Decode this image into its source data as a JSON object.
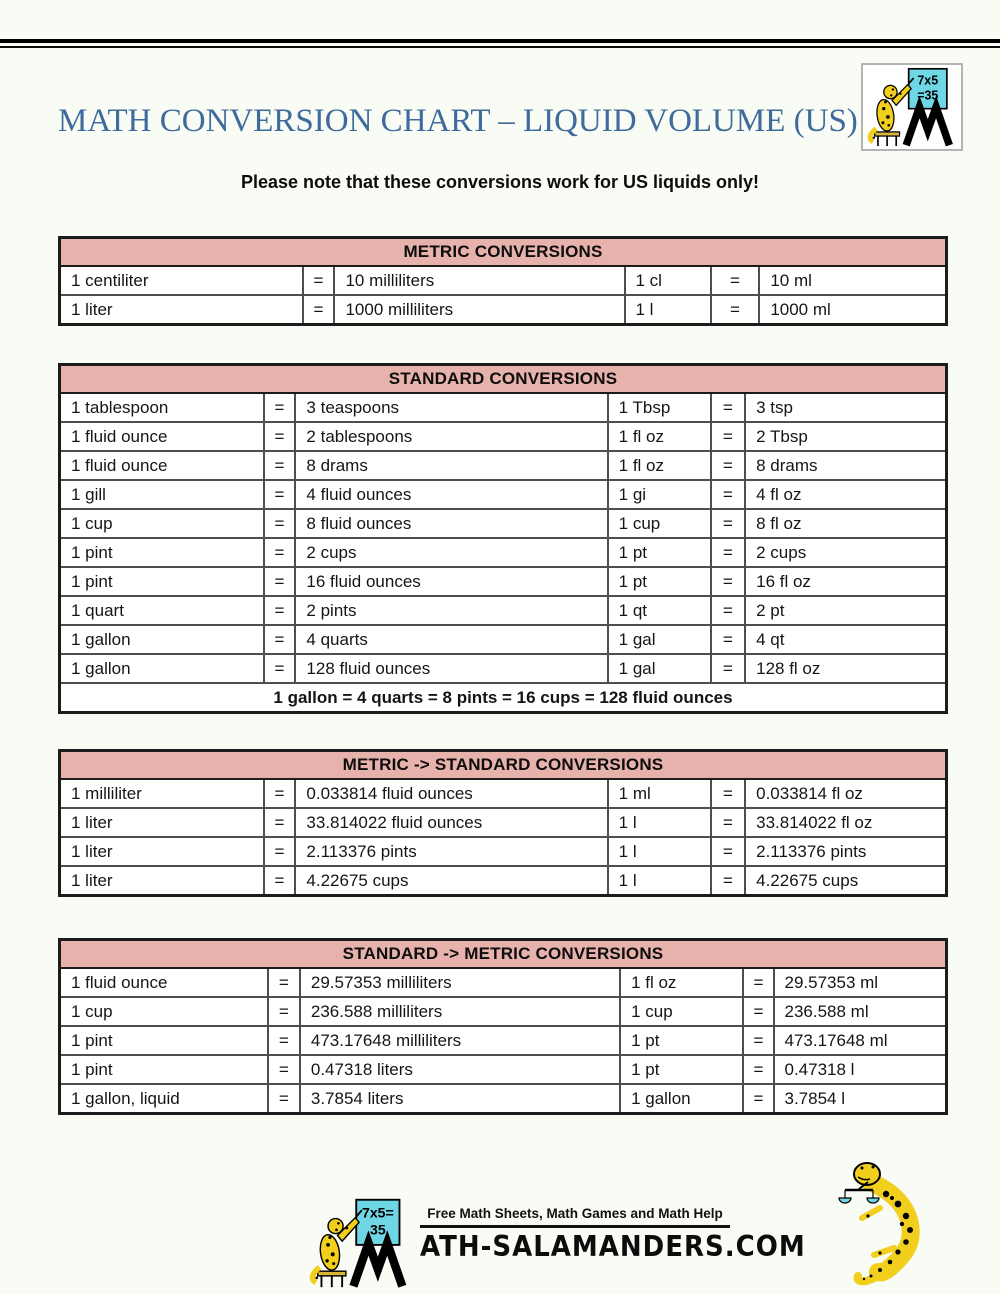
{
  "page": {
    "title": "MATH CONVERSION CHART – LIQUID VOLUME (US)",
    "note": "Please note that these conversions work for US liquids only!"
  },
  "logo_top": {
    "board_line1": "7x5",
    "board_line2": "=35"
  },
  "tables": [
    {
      "id": "metric",
      "header": "METRIC CONVERSIONS",
      "rows": [
        [
          "1 centiliter",
          "=",
          "10 milliliters",
          "1 cl",
          "=",
          "10 ml"
        ],
        [
          "1 liter",
          "=",
          "1000 milliliters",
          "1 l",
          "=",
          "1000 ml"
        ]
      ]
    },
    {
      "id": "standard",
      "header": "STANDARD CONVERSIONS",
      "rows": [
        [
          "1 tablespoon",
          "=",
          "3 teaspoons",
          "1 Tbsp",
          "=",
          "3 tsp"
        ],
        [
          "1 fluid ounce",
          "=",
          "2 tablespoons",
          "1 fl oz",
          "=",
          "2 Tbsp"
        ],
        [
          "1 fluid ounce",
          "=",
          "8 drams",
          "1 fl oz",
          "=",
          "8 drams"
        ],
        [
          "1 gill",
          "=",
          "4 fluid ounces",
          "1 gi",
          "=",
          "4 fl oz"
        ],
        [
          "1 cup",
          "=",
          "8 fluid ounces",
          "1 cup",
          "=",
          "8 fl oz"
        ],
        [
          "1 pint",
          "=",
          "2 cups",
          "1 pt",
          "=",
          "2 cups"
        ],
        [
          "1 pint",
          "=",
          "16 fluid ounces",
          "1 pt",
          "=",
          "16 fl oz"
        ],
        [
          "1 quart",
          "=",
          "2 pints",
          "1 qt",
          "=",
          "2 pt"
        ],
        [
          "1 gallon",
          "=",
          "4 quarts",
          "1 gal",
          "=",
          "4 qt"
        ],
        [
          "1 gallon",
          "=",
          "128 fluid ounces",
          "1 gal",
          "=",
          "128 fl oz"
        ]
      ],
      "footer": "1 gallon = 4 quarts = 8 pints = 16 cups = 128 fluid ounces"
    },
    {
      "id": "metric-to-standard",
      "header": "METRIC -> STANDARD CONVERSIONS",
      "rows": [
        [
          "1 milliliter",
          "=",
          "0.033814 fluid ounces",
          "1 ml",
          "=",
          "0.033814 fl oz"
        ],
        [
          "1 liter",
          "=",
          "33.814022 fluid ounces",
          "1 l",
          "=",
          "33.814022 fl oz"
        ],
        [
          "1 liter",
          "=",
          "2.113376 pints",
          "1 l",
          "=",
          "2.113376 pints"
        ],
        [
          "1 liter",
          "=",
          "4.22675 cups",
          "1 l",
          "=",
          "4.22675 cups"
        ]
      ]
    },
    {
      "id": "standard-to-metric",
      "header": "STANDARD -> METRIC CONVERSIONS",
      "rows": [
        [
          "1 fluid ounce",
          "=",
          "29.57353 milliliters",
          "1 fl oz",
          "=",
          "29.57353 ml"
        ],
        [
          "1 cup",
          "=",
          "236.588 milliliters",
          "1 cup",
          "=",
          "236.588 ml"
        ],
        [
          "1 pint",
          "=",
          "473.17648 milliliters",
          "1 pt",
          "=",
          "473.17648 ml"
        ],
        [
          "1 pint",
          "=",
          "0.47318 liters",
          "1 pt",
          "=",
          "0.47318 l"
        ],
        [
          "1 gallon, liquid",
          "=",
          "3.7854 liters",
          "1 gallon",
          "=",
          "3.7854 l"
        ]
      ]
    }
  ],
  "footer": {
    "tagline": "Free Math Sheets, Math Games and Math Help",
    "brand": "ATH-SALAMANDERS.COM",
    "board_line1": "7x5=",
    "board_line2": "35"
  },
  "icons": {
    "top_logo": "salamander-teacher-icon",
    "footer_left": "salamander-teacher-icon",
    "footer_right": "scales-salamander-icon"
  },
  "colors": {
    "header_bg": "#e7b1ac",
    "title_blue": "#3e6b9c",
    "board_cyan": "#6fd6e6",
    "salamander_yellow": "#f2cf1d"
  }
}
